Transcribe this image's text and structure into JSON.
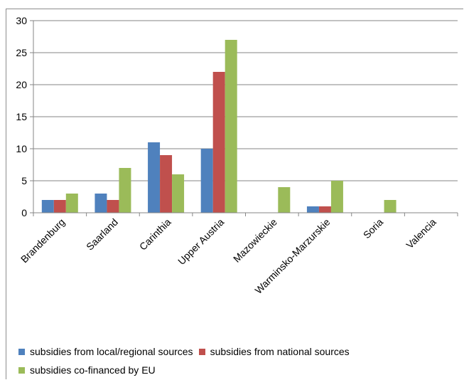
{
  "chart_data": {
    "type": "bar",
    "title": "",
    "xlabel": "",
    "ylabel": "",
    "ylim": [
      0,
      30
    ],
    "yticks": [
      "0",
      "5",
      "10",
      "15",
      "20",
      "25",
      "30"
    ],
    "grid": true,
    "legend_placement": "bottom-left",
    "categories": [
      "Brandenburg",
      "Saarland",
      "Carinthia",
      "Upper Austria",
      "Mazowieckie",
      "Warminsko-Marzurskie",
      "Soria",
      "Valencia"
    ],
    "series": [
      {
        "name": "subsidies from local/regional sources",
        "color": "#4f81bd",
        "values": [
          2,
          3,
          11,
          10,
          0,
          1,
          0,
          0
        ]
      },
      {
        "name": "subsidies from national sources",
        "color": "#c0504d",
        "values": [
          2,
          2,
          9,
          22,
          0,
          1,
          0,
          0
        ]
      },
      {
        "name": "subsidies co-financed by EU",
        "color": "#9bbb59",
        "values": [
          3,
          7,
          6,
          27,
          4,
          5,
          2,
          0
        ]
      }
    ]
  }
}
